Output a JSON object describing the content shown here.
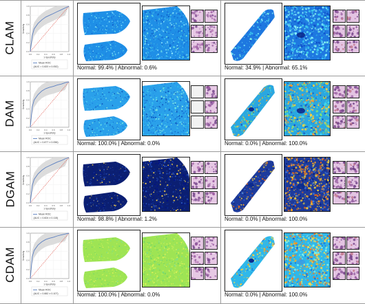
{
  "rows": [
    {
      "name": "CLAM",
      "roc_legend": "Mean ROC",
      "roc_auc": "(AUC = 0.820 ± 0.052)",
      "left_caption": "Normal: 99.4% | Abnormal: 0.6%",
      "right_caption": "Normal: 34.9% | Abnormal: 65.1%"
    },
    {
      "name": "DAM",
      "roc_legend": "Mean ROC",
      "roc_auc": "(AUC = 0.877 ± 0.056)",
      "left_caption": "Normal: 100.0% | Abnormal: 0.0%",
      "right_caption": "Normal: 0.0% | Abnormal: 100.0%"
    },
    {
      "name": "DGAM",
      "roc_legend": "Mean ROC",
      "roc_auc": "(AUC = 0.824 ± 0.115)",
      "left_caption": "Normal: 98.8% | Abnormal: 1.2%",
      "right_caption": "Normal: 0.0% | Abnormal: 100.0%"
    },
    {
      "name": "CDAM",
      "roc_legend": "Mean ROC",
      "roc_auc": "(AUC = 0.882 ± 0.107)",
      "left_caption": "Normal: 100.0% | Abnormal: 0.0%",
      "right_caption": "Normal: 0.0% | Abnormal: 100.0%"
    }
  ],
  "axis": {
    "xlabel": "1-Specificity",
    "ylabel": "Sensitivity",
    "ticks": [
      "0.0",
      "0.2",
      "0.4",
      "0.6",
      "0.8",
      "1.0"
    ]
  },
  "colors": {
    "mean_roc": "#5b7fc0",
    "chance": "#e0554b",
    "std_band": "#d8d8d8",
    "clam": "#1e90ff",
    "dam": "#2a9be8",
    "dgam": "#0a1e6e",
    "cdam": "#9be650"
  },
  "chart_data": [
    {
      "type": "line",
      "title": "",
      "xlabel": "1-Specificity",
      "ylabel": "Sensitivity",
      "xlim": [
        0,
        1
      ],
      "ylim": [
        0,
        1
      ],
      "series": [
        {
          "name": "Mean ROC",
          "x": [
            0,
            0.05,
            0.1,
            0.2,
            0.3,
            0.4,
            0.5,
            0.6,
            0.7,
            0.8,
            0.9,
            1.0
          ],
          "y": [
            0,
            0.35,
            0.5,
            0.62,
            0.7,
            0.76,
            0.8,
            0.84,
            0.88,
            0.92,
            0.96,
            1.0
          ]
        }
      ]
    },
    {
      "type": "line",
      "title": "",
      "xlabel": "1-Specificity",
      "ylabel": "Sensitivity",
      "xlim": [
        0,
        1
      ],
      "ylim": [
        0,
        1
      ],
      "series": [
        {
          "name": "Mean ROC",
          "x": [
            0,
            0.05,
            0.1,
            0.2,
            0.3,
            0.4,
            0.5,
            0.6,
            0.7,
            0.8,
            0.9,
            1.0
          ],
          "y": [
            0,
            0.45,
            0.6,
            0.72,
            0.8,
            0.85,
            0.88,
            0.9,
            0.93,
            0.95,
            0.98,
            1.0
          ]
        }
      ]
    },
    {
      "type": "line",
      "title": "",
      "xlabel": "1-Specificity",
      "ylabel": "Sensitivity",
      "xlim": [
        0,
        1
      ],
      "ylim": [
        0,
        1
      ],
      "series": [
        {
          "name": "Mean ROC",
          "x": [
            0,
            0.05,
            0.1,
            0.2,
            0.3,
            0.4,
            0.5,
            0.6,
            0.7,
            0.8,
            0.9,
            1.0
          ],
          "y": [
            0,
            0.38,
            0.52,
            0.64,
            0.72,
            0.78,
            0.82,
            0.86,
            0.9,
            0.93,
            0.97,
            1.0
          ]
        }
      ]
    },
    {
      "type": "line",
      "title": "",
      "xlabel": "1-Specificity",
      "ylabel": "Sensitivity",
      "xlim": [
        0,
        1
      ],
      "ylim": [
        0,
        1
      ],
      "series": [
        {
          "name": "Mean ROC",
          "x": [
            0,
            0.05,
            0.1,
            0.2,
            0.3,
            0.4,
            0.5,
            0.6,
            0.7,
            0.8,
            0.9,
            1.0
          ],
          "y": [
            0,
            0.48,
            0.62,
            0.74,
            0.81,
            0.86,
            0.89,
            0.91,
            0.94,
            0.96,
            0.98,
            1.0
          ]
        }
      ]
    }
  ]
}
